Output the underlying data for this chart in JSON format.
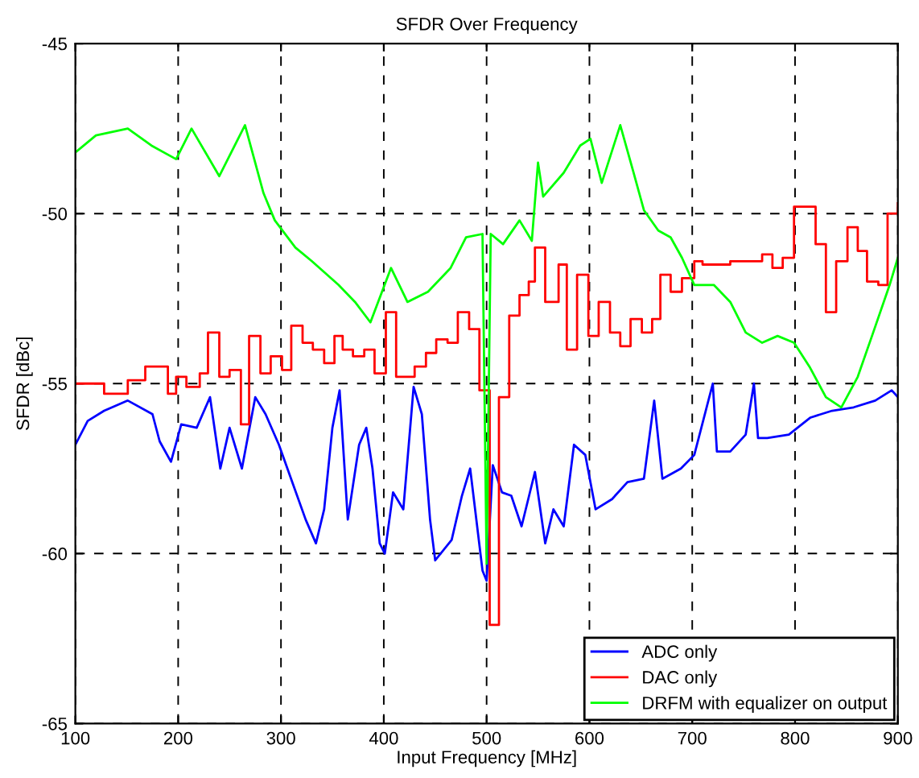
{
  "chart_data": {
    "type": "line",
    "title": "SFDR Over Frequency",
    "xlabel": "Input Frequency [MHz]",
    "ylabel": "SFDR [dBc]",
    "xlim": [
      100,
      900
    ],
    "xticks": [
      100,
      200,
      300,
      400,
      500,
      600,
      700,
      800,
      900
    ],
    "ylim": [
      -65,
      -45
    ],
    "yticks": [
      -65,
      -60,
      -55,
      -50,
      -45
    ],
    "grid": true,
    "legend": "bottom right",
    "line_style": "solid",
    "marker": "none",
    "series": [
      {
        "name": "ADC only",
        "color": "#0000ff",
        "x": [
          100,
          112,
          128,
          151,
          175,
          182,
          193,
          203,
          218,
          231,
          241,
          250,
          262,
          275,
          285,
          298,
          311,
          324,
          334,
          342,
          350,
          357,
          365,
          376,
          383,
          389,
          396,
          401,
          409,
          419,
          429,
          437,
          445,
          450,
          466,
          476,
          484,
          496,
          500,
          506,
          515,
          524,
          534,
          547,
          557,
          565,
          575,
          585,
          596,
          606,
          622,
          637,
          653,
          663,
          671,
          689,
          702,
          720,
          724,
          737,
          752,
          760,
          764,
          773,
          794,
          815,
          836,
          857,
          878,
          894,
          900
        ],
        "values": [
          -56.8,
          -56.1,
          -55.8,
          -55.5,
          -55.9,
          -56.7,
          -57.3,
          -56.2,
          -56.3,
          -55.4,
          -57.5,
          -56.3,
          -57.5,
          -55.4,
          -55.9,
          -56.8,
          -57.9,
          -59.0,
          -59.7,
          -58.7,
          -56.3,
          -55.2,
          -59.0,
          -56.8,
          -56.3,
          -57.5,
          -59.7,
          -60.0,
          -58.2,
          -58.7,
          -55.1,
          -55.9,
          -59.0,
          -60.2,
          -59.6,
          -58.3,
          -57.5,
          -60.5,
          -60.8,
          -57.4,
          -58.2,
          -58.3,
          -59.2,
          -57.6,
          -59.7,
          -58.7,
          -59.2,
          -56.8,
          -57.1,
          -58.7,
          -58.4,
          -57.9,
          -57.8,
          -55.5,
          -57.8,
          -57.5,
          -57.1,
          -55.0,
          -57.0,
          -57.0,
          -56.5,
          -55.0,
          -56.6,
          -56.6,
          -56.5,
          -56.0,
          -55.8,
          -55.7,
          -55.5,
          -55.2,
          -55.4
        ]
      },
      {
        "name": "DAC only",
        "color": "#ff0000",
        "type": "step",
        "x": [
          100,
          128,
          151,
          168,
          182,
          190,
          198,
          208,
          221,
          229,
          240,
          250,
          261,
          269,
          280,
          290,
          301,
          310,
          321,
          331,
          342,
          352,
          360,
          370,
          381,
          391,
          402,
          412,
          430,
          441,
          451,
          462,
          472,
          483,
          493,
          503,
          512,
          522,
          532,
          541,
          547,
          557,
          570,
          578,
          588,
          599,
          609,
          620,
          630,
          640,
          651,
          661,
          669,
          679,
          690,
          702,
          710,
          737,
          768,
          778,
          788,
          799,
          820,
          830,
          840,
          851,
          861,
          870,
          881,
          890,
          900
        ],
        "values": [
          -55.0,
          -55.3,
          -54.9,
          -54.5,
          -54.5,
          -55.3,
          -54.8,
          -55.1,
          -54.7,
          -53.5,
          -54.8,
          -54.6,
          -56.2,
          -53.6,
          -54.7,
          -54.2,
          -54.6,
          -53.3,
          -53.8,
          -54.0,
          -54.4,
          -53.6,
          -54.0,
          -54.2,
          -54.0,
          -54.7,
          -52.9,
          -54.8,
          -54.5,
          -54.1,
          -53.7,
          -53.8,
          -52.9,
          -53.4,
          -55.2,
          -62.1,
          -55.4,
          -53.0,
          -52.4,
          -52.0,
          -51.0,
          -52.6,
          -51.5,
          -54.0,
          -51.8,
          -53.6,
          -52.6,
          -53.5,
          -53.9,
          -53.1,
          -53.5,
          -53.1,
          -51.8,
          -52.3,
          -51.9,
          -51.4,
          -51.5,
          -51.4,
          -51.2,
          -51.6,
          -51.3,
          -49.8,
          -50.9,
          -52.9,
          -51.4,
          -50.4,
          -51.1,
          -52.0,
          -52.1,
          -50.0,
          -49.7
        ]
      },
      {
        "name": "DRFM with equalizer on output",
        "color": "#00ff00",
        "x": [
          100,
          120,
          151,
          174,
          198,
          213,
          240,
          265,
          283,
          294,
          314,
          330,
          356,
          372,
          387,
          407,
          423,
          443,
          465,
          480,
          496,
          500,
          504,
          516,
          532,
          544,
          550,
          555,
          575,
          591,
          601,
          612,
          630,
          643,
          653,
          667,
          679,
          690,
          702,
          721,
          737,
          752,
          768,
          783,
          799,
          814,
          830,
          845,
          861,
          876,
          892,
          900
        ],
        "values": [
          -48.2,
          -47.7,
          -47.5,
          -48.0,
          -48.4,
          -47.5,
          -48.9,
          -47.4,
          -49.4,
          -50.2,
          -51.0,
          -51.4,
          -52.1,
          -52.6,
          -53.2,
          -51.6,
          -52.6,
          -52.3,
          -51.6,
          -50.7,
          -50.6,
          -60.3,
          -50.6,
          -50.9,
          -50.2,
          -50.8,
          -48.5,
          -49.5,
          -48.8,
          -48.0,
          -47.8,
          -49.1,
          -47.4,
          -48.8,
          -49.9,
          -50.5,
          -50.7,
          -51.3,
          -52.1,
          -52.1,
          -52.6,
          -53.5,
          -53.8,
          -53.6,
          -53.8,
          -54.5,
          -55.4,
          -55.7,
          -54.8,
          -53.5,
          -52.1,
          -51.3
        ]
      }
    ]
  }
}
